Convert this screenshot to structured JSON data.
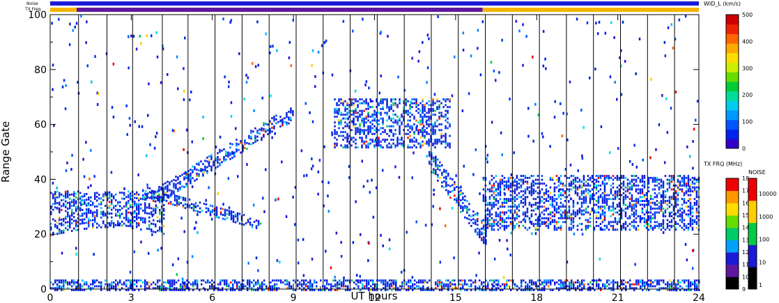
{
  "chart_data": {
    "type": "heatmap",
    "xlabel": "UT hours",
    "ylabel": "Range Gate",
    "xlim": [
      0,
      24
    ],
    "ylim": [
      0,
      100
    ],
    "x_ticks": [
      "0",
      "3",
      "6",
      "9",
      "12",
      "15",
      "18",
      "21",
      "24"
    ],
    "y_ticks": [
      "0",
      "20",
      "40",
      "60",
      "80",
      "100"
    ],
    "strip_labels": {
      "noise": "Noise",
      "txfreq": "TX Freq"
    },
    "colorbar_width": {
      "title": "WID_L (km/s)",
      "ticks": [
        "0",
        "100",
        "200",
        "300",
        "400",
        "500"
      ],
      "range": [
        0,
        500
      ]
    },
    "colorbar_txfreq": {
      "title": "TX FRQ (MHz)",
      "ticks": [
        "9",
        "10",
        "11",
        "12",
        "13",
        "14",
        "15",
        "16",
        "17",
        "18"
      ]
    },
    "colorbar_noise": {
      "title": "NOISE",
      "ticks": [
        "1",
        "10",
        "100",
        "1000",
        "10000"
      ]
    },
    "scan_boundaries_hours": [
      1.05,
      2.1,
      3.05,
      4.15,
      5.1,
      6.1,
      7.1,
      8.1,
      9.1,
      10.1,
      11.1,
      12.1,
      13.1,
      14.1,
      15.1,
      16.1,
      17.1,
      18.1,
      19.1,
      20.1,
      21.1,
      22.1,
      23.1
    ],
    "txfreq_change_hour": 16.0,
    "backscatter_regions": [
      {
        "name": "near-range band",
        "x": [
          0,
          24
        ],
        "gates": [
          0,
          4
        ]
      },
      {
        "name": "main band early",
        "x": [
          0,
          4.2
        ],
        "gates": [
          18,
          38
        ]
      },
      {
        "name": "descending arc",
        "x": [
          3.5,
          7.8
        ],
        "gates": [
          22,
          34
        ]
      },
      {
        "name": "rising arc",
        "x": [
          4,
          9
        ],
        "gates": [
          32,
          70
        ]
      },
      {
        "name": "mid-range patch",
        "x": [
          10.5,
          14.8
        ],
        "gates": [
          52,
          70
        ]
      },
      {
        "name": "post-16h band",
        "x": [
          16,
          24
        ],
        "gates": [
          22,
          42
        ]
      },
      {
        "name": "dawn recovery",
        "x": [
          14,
          16.1
        ],
        "gates": [
          16,
          44
        ]
      }
    ]
  },
  "colors": {
    "noise_strip": "#1a1ad8",
    "txfreq_dark": "#5e189e",
    "txfreq_orange": "#f5b400",
    "scan_line": "#000000"
  }
}
